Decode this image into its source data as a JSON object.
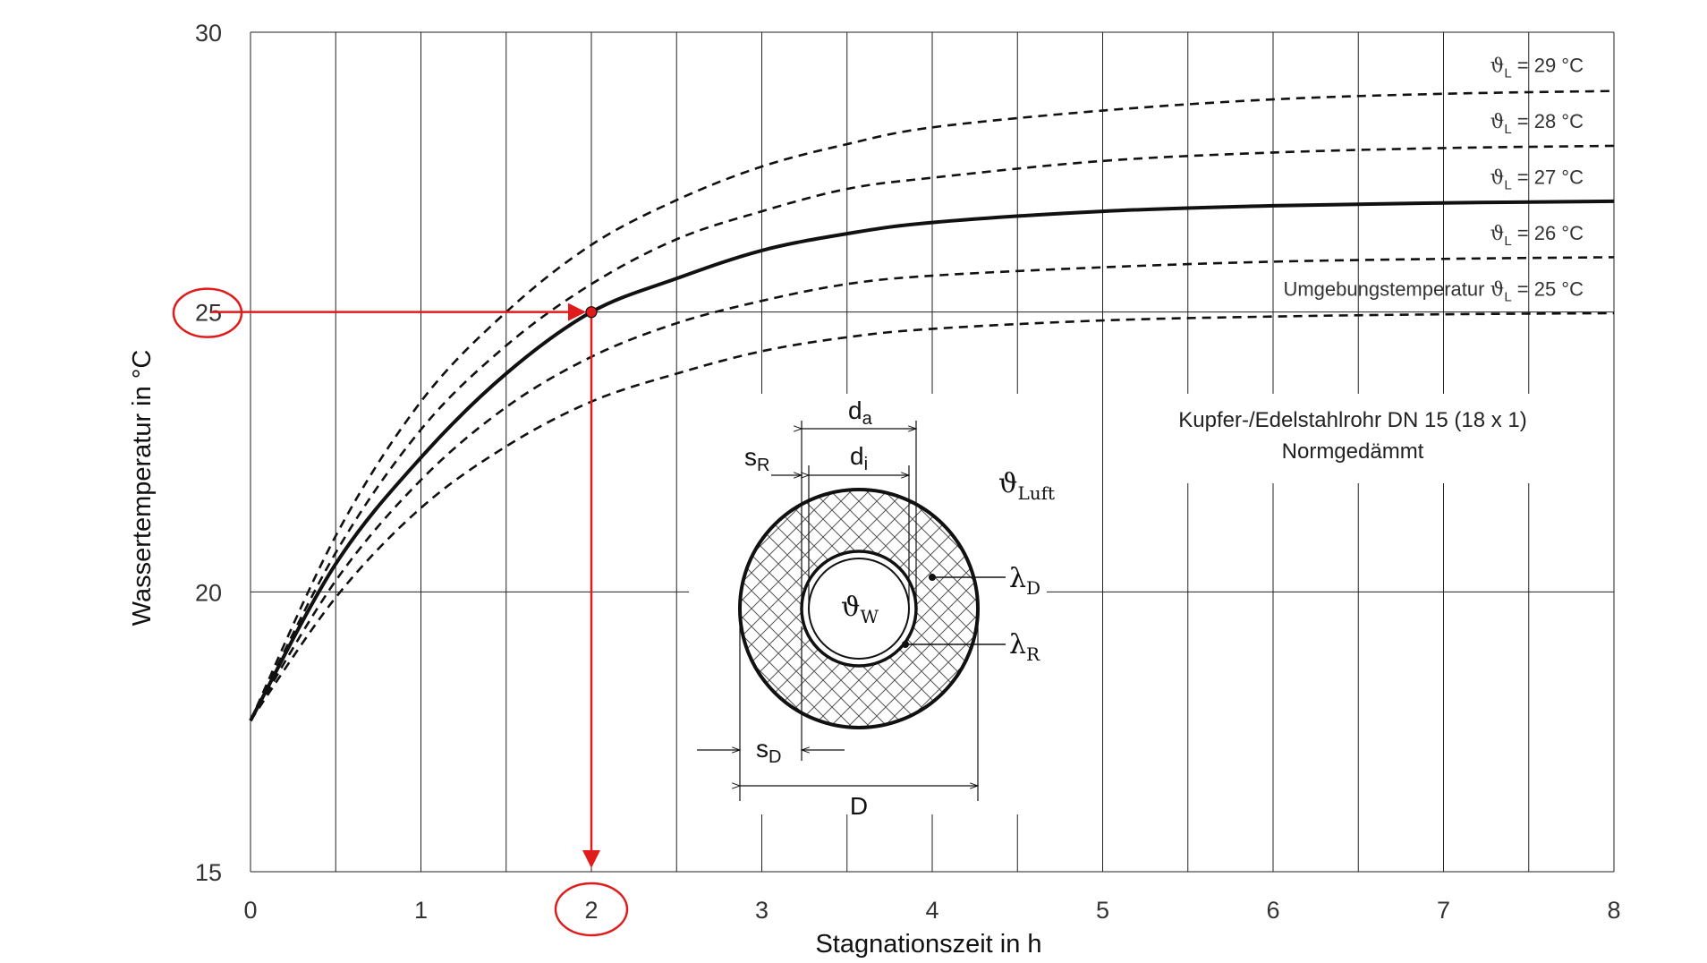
{
  "chart_data": {
    "type": "line",
    "xlabel": "Stagnationszeit  in  h",
    "ylabel": "Wassertemperatur  in  °C",
    "xlim": [
      0,
      8
    ],
    "ylim": [
      15,
      30
    ],
    "x_ticks": [
      "0",
      "1",
      "2",
      "3",
      "4",
      "5",
      "6",
      "7",
      "8"
    ],
    "y_ticks": [
      "15",
      "20",
      "25",
      "30"
    ],
    "grid": "vertical every 0.5 h, horizontal at 20 and 25 °C",
    "start_temperature": 17.7,
    "series": [
      {
        "name": "ϑL = 29 °C",
        "symbol": "ϑ",
        "sub": "L",
        "rest": " = 29 °C",
        "asymptote": 29,
        "style": "dashed",
        "color": "#111111",
        "points": [
          [
            0,
            17.7
          ],
          [
            0.5,
            21.0
          ],
          [
            1,
            23.4
          ],
          [
            1.5,
            25.0
          ],
          [
            2,
            26.2
          ],
          [
            2.5,
            27.0
          ],
          [
            3,
            27.6
          ],
          [
            3.5,
            28.0
          ],
          [
            4,
            28.3
          ],
          [
            5,
            28.6
          ],
          [
            6,
            28.8
          ],
          [
            7,
            28.9
          ],
          [
            8,
            28.95
          ]
        ]
      },
      {
        "name": "ϑL = 28 °C",
        "symbol": "ϑ",
        "sub": "L",
        "rest": " = 28 °C",
        "asymptote": 28,
        "style": "dashed",
        "color": "#111111",
        "points": [
          [
            0,
            17.7
          ],
          [
            0.5,
            20.7
          ],
          [
            1,
            22.9
          ],
          [
            1.5,
            24.4
          ],
          [
            2,
            25.5
          ],
          [
            2.5,
            26.3
          ],
          [
            3,
            26.8
          ],
          [
            3.5,
            27.2
          ],
          [
            4,
            27.4
          ],
          [
            5,
            27.7
          ],
          [
            6,
            27.85
          ],
          [
            7,
            27.93
          ],
          [
            8,
            27.97
          ]
        ]
      },
      {
        "name": "ϑL = 27 °C",
        "symbol": "ϑ",
        "sub": "L",
        "rest": " = 27 °C",
        "asymptote": 27,
        "style": "solid",
        "color": "#e01b1b",
        "points": [
          [
            0,
            17.7
          ],
          [
            0.5,
            20.5
          ],
          [
            1,
            22.4
          ],
          [
            1.5,
            23.9
          ],
          [
            2,
            25.0
          ],
          [
            2.5,
            25.6
          ],
          [
            3,
            26.1
          ],
          [
            3.5,
            26.4
          ],
          [
            4,
            26.6
          ],
          [
            5,
            26.8
          ],
          [
            6,
            26.9
          ],
          [
            7,
            26.95
          ],
          [
            8,
            26.98
          ]
        ]
      },
      {
        "name": "ϑL = 26 °C",
        "symbol": "ϑ",
        "sub": "L",
        "rest": " = 26 °C",
        "asymptote": 26,
        "style": "dashed",
        "color": "#111111",
        "points": [
          [
            0,
            17.7
          ],
          [
            0.5,
            20.2
          ],
          [
            1,
            22.0
          ],
          [
            1.5,
            23.3
          ],
          [
            2,
            24.2
          ],
          [
            2.5,
            24.8
          ],
          [
            3,
            25.2
          ],
          [
            3.5,
            25.5
          ],
          [
            4,
            25.65
          ],
          [
            5,
            25.8
          ],
          [
            6,
            25.9
          ],
          [
            7,
            25.95
          ],
          [
            8,
            25.98
          ]
        ]
      },
      {
        "name": "Umgebungstemperatur  ϑL = 25 °C",
        "prefix": "Umgebungstemperatur  ",
        "symbol": "ϑ",
        "sub": "L",
        "rest": " = 25 °C",
        "asymptote": 25,
        "style": "dashed",
        "color": "#111111",
        "points": [
          [
            0,
            17.7
          ],
          [
            0.5,
            19.9
          ],
          [
            1,
            21.5
          ],
          [
            1.5,
            22.6
          ],
          [
            2,
            23.4
          ],
          [
            2.5,
            23.9
          ],
          [
            3,
            24.3
          ],
          [
            3.5,
            24.55
          ],
          [
            4,
            24.7
          ],
          [
            5,
            24.85
          ],
          [
            6,
            24.92
          ],
          [
            7,
            24.96
          ],
          [
            8,
            24.98
          ]
        ]
      }
    ],
    "annotation": {
      "point": [
        2,
        25
      ],
      "x_marker": "2",
      "y_marker": "25",
      "color": "#e01b1b"
    }
  },
  "inset": {
    "title_line1": "Kupfer-/Edelstahlrohr DN 15 (18 x 1)",
    "title_line2": "Normgedämmt",
    "da": "d",
    "da_sub": "a",
    "di": "d",
    "di_sub": "i",
    "sR": "s",
    "sR_sub": "R",
    "sD": "s",
    "sD_sub": "D",
    "D": "D",
    "thetaW": "ϑ",
    "thetaW_sub": "W",
    "thetaLuft": "ϑ",
    "thetaLuft_sub": "Luft",
    "lambdaD": "λ",
    "lambdaD_sub": "D",
    "lambdaR": "λ",
    "lambdaR_sub": "R"
  }
}
